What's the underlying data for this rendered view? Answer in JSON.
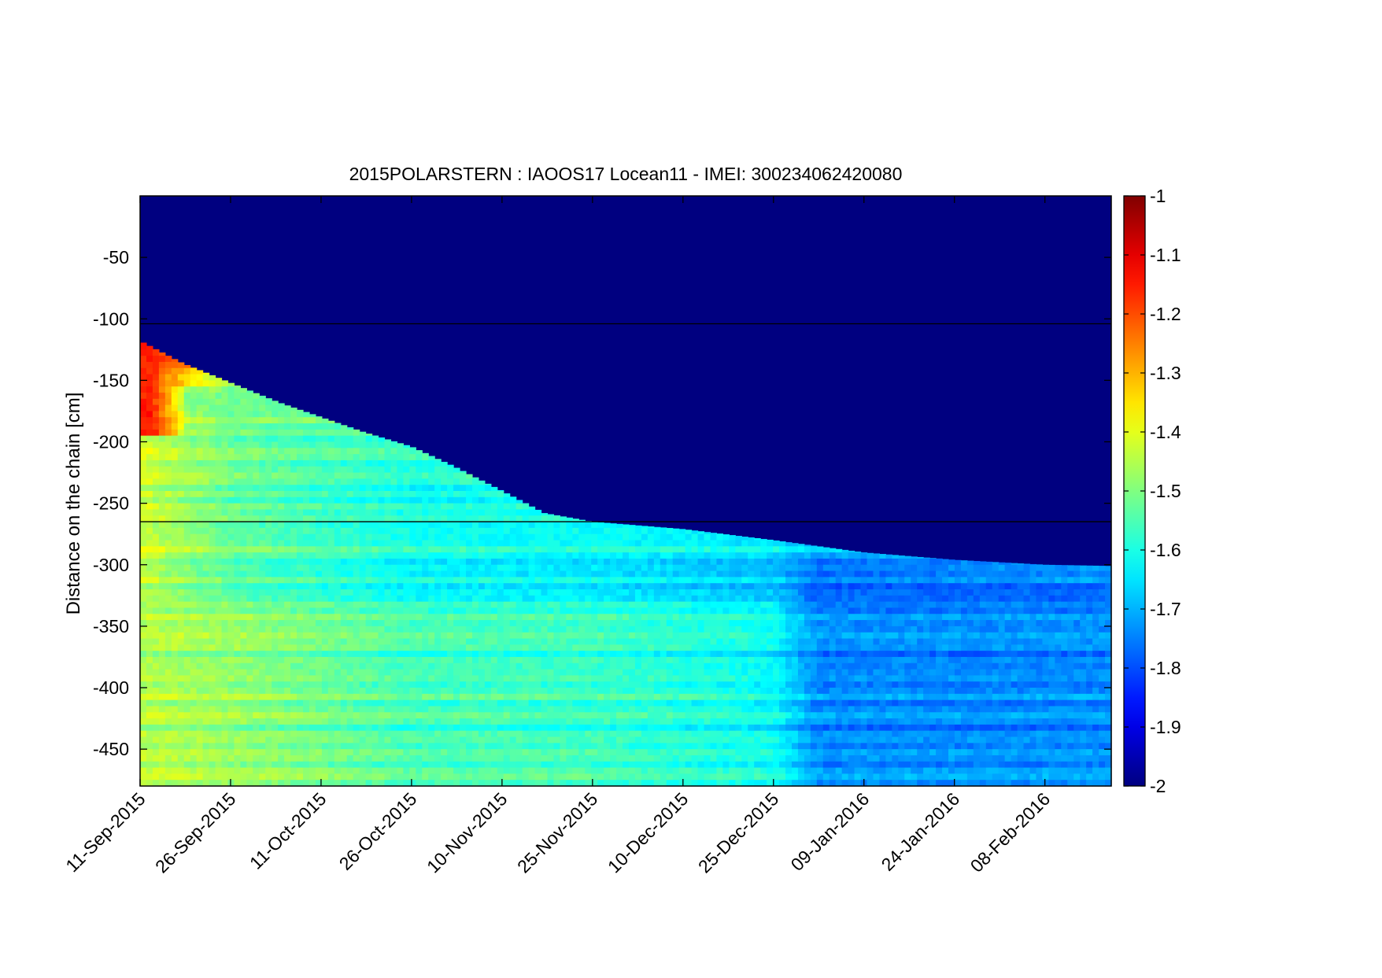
{
  "chart_data": {
    "type": "heatmap",
    "title": "2015POLARSTERN : IAOOS17  Locean11 - IMEI: 300234062420080",
    "xlabel": "",
    "ylabel": "Distance on the chain [cm]",
    "x_start": "2015-09-11",
    "x_end": "2016-02-19",
    "x_ticks": [
      {
        "date": "2015-09-11",
        "label": "11-Sep-2015"
      },
      {
        "date": "2015-09-26",
        "label": "26-Sep-2015"
      },
      {
        "date": "2015-10-11",
        "label": "11-Oct-2015"
      },
      {
        "date": "2015-10-26",
        "label": "26-Oct-2015"
      },
      {
        "date": "2015-11-10",
        "label": "10-Nov-2015"
      },
      {
        "date": "2015-11-25",
        "label": "25-Nov-2015"
      },
      {
        "date": "2015-12-10",
        "label": "10-Dec-2015"
      },
      {
        "date": "2015-12-25",
        "label": "25-Dec-2015"
      },
      {
        "date": "2016-01-09",
        "label": "09-Jan-2016"
      },
      {
        "date": "2016-01-24",
        "label": "24-Jan-2016"
      },
      {
        "date": "2016-02-08",
        "label": "08-Feb-2016"
      }
    ],
    "ylim": [
      -480,
      0
    ],
    "y_ticks": [
      -50,
      -100,
      -150,
      -200,
      -250,
      -300,
      -350,
      -400,
      -450
    ],
    "reference_lines_y": [
      -104,
      -265
    ],
    "colorbar": {
      "min": -2,
      "max": -1,
      "ticks": [
        -1,
        -1.1,
        -1.2,
        -1.3,
        -1.4,
        -1.5,
        -1.6,
        -1.7,
        -1.8,
        -1.9,
        -2
      ],
      "colormap": "jet"
    },
    "interface_depth": [
      {
        "date": "2015-09-11",
        "y": -118
      },
      {
        "date": "2015-09-18",
        "y": -136
      },
      {
        "date": "2015-09-26",
        "y": -152
      },
      {
        "date": "2015-10-04",
        "y": -168
      },
      {
        "date": "2015-10-11",
        "y": -180
      },
      {
        "date": "2015-10-18",
        "y": -192
      },
      {
        "date": "2015-10-26",
        "y": -204
      },
      {
        "date": "2015-11-02",
        "y": -220
      },
      {
        "date": "2015-11-10",
        "y": -240
      },
      {
        "date": "2015-11-17",
        "y": -258
      },
      {
        "date": "2015-11-25",
        "y": -265
      },
      {
        "date": "2015-12-10",
        "y": -271
      },
      {
        "date": "2015-12-25",
        "y": -280
      },
      {
        "date": "2016-01-09",
        "y": -290
      },
      {
        "date": "2016-01-24",
        "y": -296
      },
      {
        "date": "2016-02-08",
        "y": -300
      },
      {
        "date": "2016-02-19",
        "y": -301
      }
    ],
    "values_above_interface": -2.0,
    "warm_core": {
      "date_start": "2015-09-11",
      "date_end": "2015-09-19",
      "y_top": -120,
      "y_bottom": -195,
      "value": -1.15
    },
    "column_profiles": [
      {
        "date": "2015-09-11",
        "near_interface": -1.12,
        "mid_depth": -1.42,
        "deep": -1.45
      },
      {
        "date": "2015-09-26",
        "near_interface": -1.48,
        "mid_depth": -1.52,
        "deep": -1.48
      },
      {
        "date": "2015-10-26",
        "near_interface": -1.58,
        "mid_depth": -1.6,
        "deep": -1.56
      },
      {
        "date": "2015-11-25",
        "near_interface": -1.6,
        "mid_depth": -1.62,
        "deep": -1.57
      },
      {
        "date": "2015-12-25",
        "near_interface": -1.64,
        "mid_depth": -1.66,
        "deep": -1.62
      },
      {
        "date": "2016-01-01",
        "near_interface": -1.7,
        "mid_depth": -1.75,
        "deep": -1.74
      },
      {
        "date": "2016-02-19",
        "near_interface": -1.7,
        "mid_depth": -1.76,
        "deep": -1.74
      }
    ],
    "grid": false
  }
}
